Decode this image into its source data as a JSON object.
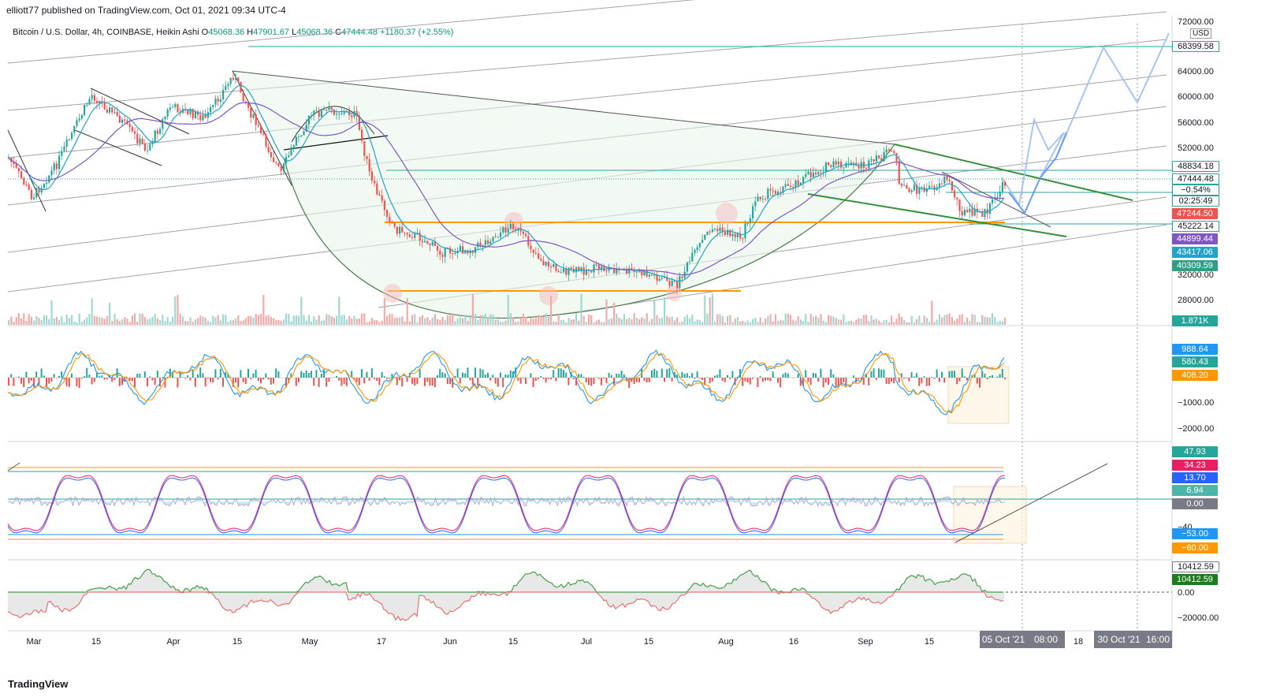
{
  "header": {
    "published": "elliott77 published on TradingView.com, Oct 01, 2021 09:34 UTC-4",
    "symbol": "Bitcoin / U.S. Dollar, 4h, COINBASE, Heikin Ashi",
    "ohlc": {
      "o_label": "O",
      "o": "45068.36",
      "h_label": "H",
      "h": "47901.67",
      "l_label": "L",
      "l": "45068.36",
      "c_label": "C",
      "c": "47444.48",
      "change": "+1180.37 (+2.55%)"
    }
  },
  "currency": "USD",
  "price_axis": [
    "72000.00",
    "64000.00",
    "60000.00",
    "56000.00",
    "52000.00",
    "32000.00",
    "28000.00"
  ],
  "price_tags": [
    {
      "text": "68399.58",
      "color": "#26a69a",
      "kind": "outline"
    },
    {
      "text": "48834.18",
      "color": "#26a69a",
      "kind": "outline"
    },
    {
      "text": "47444.48",
      "color": "#26a69a",
      "kind": "outline"
    },
    {
      "text": "−0.54%",
      "color": "#26a69a",
      "kind": "outline"
    },
    {
      "text": "02:25:49",
      "color": "#26a69a",
      "kind": "outline"
    },
    {
      "text": "47244.50",
      "color": "#ef5350",
      "kind": "fill"
    },
    {
      "text": "45222.14",
      "color": "#26a69a",
      "kind": "outline"
    },
    {
      "text": "44899.44",
      "color": "#7e57c2",
      "kind": "fill"
    },
    {
      "text": "43417.06",
      "color": "#22a4c6",
      "kind": "fill"
    },
    {
      "text": "40309.59",
      "color": "#2e9e84",
      "kind": "fill"
    },
    {
      "text": "1.871K",
      "color": "#26a69a",
      "kind": "fill"
    }
  ],
  "macd_axis": [
    "−1000.00",
    "−2000.00"
  ],
  "macd_tags": [
    {
      "text": "988.64",
      "color": "#2196f3"
    },
    {
      "text": "580.43",
      "color": "#26a69a"
    },
    {
      "text": "408.20",
      "color": "#ff9800"
    }
  ],
  "rsi_axis": [
    "−40"
  ],
  "rsi_tags": [
    {
      "text": "47.93",
      "color": "#26a69a"
    },
    {
      "text": "34.23",
      "color": "#e91e63"
    },
    {
      "text": "13.70",
      "color": "#2962ff"
    },
    {
      "text": "6.94",
      "color": "#4db6ac"
    },
    {
      "text": "0.00",
      "color": "#787b86"
    },
    {
      "text": "−53.00",
      "color": "#2196f3"
    },
    {
      "text": "−60.00",
      "color": "#ff9800"
    }
  ],
  "osc_axis": [
    "0.00",
    "−20000.00"
  ],
  "osc_tags": [
    {
      "text": "10412.59",
      "color": "#787b86",
      "kind": "outline"
    },
    {
      "text": "10412.59",
      "color": "#1b7d1b",
      "kind": "fill"
    }
  ],
  "time_axis": [
    "Mar",
    "15",
    "Apr",
    "15",
    "May",
    "17",
    "Jun",
    "15",
    "Jul",
    "15",
    "Aug",
    "16",
    "Sep",
    "15",
    "18"
  ],
  "date_boxes": [
    "05 Oct '21",
    "08:00",
    "30 Oct '21",
    "16:00"
  ],
  "footer": {
    "logo": "TradingView"
  },
  "chart_data": {
    "type": "candlestick",
    "x": [
      "Mar",
      "Apr",
      "May",
      "Jun",
      "Jul",
      "Aug",
      "Sep",
      "Oct"
    ],
    "close": [
      48000,
      58000,
      57000,
      36000,
      34000,
      41000,
      47000,
      47444
    ],
    "ylim": [
      28000,
      72000
    ],
    "horizontal_levels": [
      68399.58,
      48834.18,
      47444.48,
      45222.14,
      44899.44,
      43417.06,
      40309.59
    ],
    "colors": {
      "up": "#26a69a",
      "down": "#ef5350",
      "ma_fast": "#22a4c6",
      "ma_slow": "#7e57c2",
      "support": "#ff9800",
      "trend": "#388e3c",
      "forecast": "#6c9cf0"
    }
  }
}
